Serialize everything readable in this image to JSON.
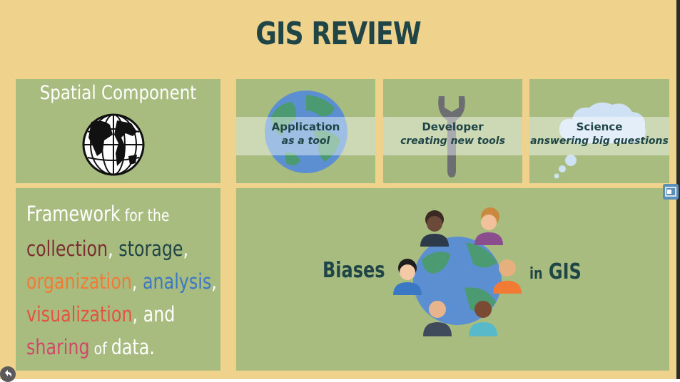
{
  "title": "GIS REVIEW",
  "spatial": {
    "label": "Spatial Component",
    "icon": "globe-icon"
  },
  "uses": [
    {
      "line1": "Application",
      "line2": "as a tool",
      "icon": "earth-icon"
    },
    {
      "line1": "Developer",
      "line2": "creating new tools",
      "icon": "wrench-icon"
    },
    {
      "line1": "Science",
      "line2": "answering big questions",
      "icon": "thought-cloud-icon"
    }
  ],
  "framework": {
    "w1": "Framework",
    "w2": " for the",
    "w3": "collection",
    "w4": ", ",
    "w5": "storage",
    "w6": ",",
    "w7": "organization",
    "w8": ", ",
    "w9": "analysis",
    "w10": ",",
    "w11": "visualization",
    "w12": ", and",
    "w13": "sharing",
    "w14": " of ",
    "w15": "data."
  },
  "biases": {
    "left": "Biases",
    "mid": "in",
    "right": "GIS"
  },
  "controls": {
    "side_icon": "slides-icon",
    "back_icon": "back-arrow-icon"
  },
  "colors": {
    "background": "#efd28c",
    "panel": "#a9bc7f",
    "title": "#1f4547",
    "collection": "#7c2f33",
    "organization": "#f17b34",
    "analysis": "#3b78c4",
    "visualization": "#e4533e",
    "sharing": "#d04867"
  }
}
